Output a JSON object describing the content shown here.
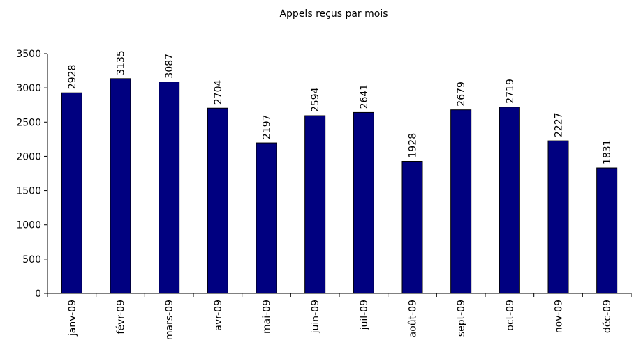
{
  "chart_data": {
    "type": "bar",
    "title": "Appels reçus par mois",
    "categories": [
      "janv-09",
      "févr-09",
      "mars-09",
      "avr-09",
      "mai-09",
      "juin-09",
      "juil-09",
      "août-09",
      "sept-09",
      "oct-09",
      "nov-09",
      "déc-09"
    ],
    "values": [
      2928,
      3135,
      3087,
      2704,
      2197,
      2594,
      2641,
      1928,
      2679,
      2719,
      2227,
      1831
    ],
    "color": "#000080",
    "ylim": [
      0,
      3500
    ],
    "yticks": [
      0,
      500,
      1000,
      1500,
      2000,
      2500,
      3000,
      3500
    ],
    "grid": false
  }
}
